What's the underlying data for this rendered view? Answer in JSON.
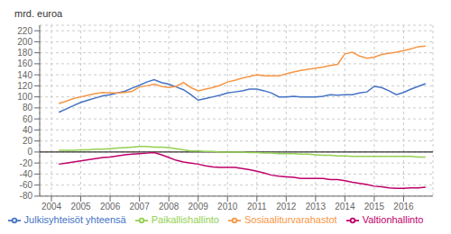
{
  "chart_data": {
    "type": "line",
    "y_label": "mrd. euroa",
    "x": [
      2004.25,
      2004.5,
      2004.75,
      2005.0,
      2005.25,
      2005.5,
      2005.75,
      2006.0,
      2006.25,
      2006.5,
      2006.75,
      2007.0,
      2007.25,
      2007.5,
      2007.75,
      2008.0,
      2008.25,
      2008.5,
      2008.75,
      2009.0,
      2009.25,
      2009.5,
      2009.75,
      2010.0,
      2010.25,
      2010.5,
      2010.75,
      2011.0,
      2011.25,
      2011.5,
      2011.75,
      2012.0,
      2012.25,
      2012.5,
      2012.75,
      2013.0,
      2013.25,
      2013.5,
      2013.75,
      2014.0,
      2014.25,
      2014.5,
      2014.75,
      2015.0,
      2015.25,
      2015.5,
      2015.75,
      2016.0,
      2016.25,
      2016.5,
      2016.75
    ],
    "series": [
      {
        "name": "Julkisyhteisöt yhteensä",
        "color": "#4472c4",
        "values": [
          72,
          78,
          84,
          90,
          94,
          98,
          102,
          104,
          107,
          110,
          116,
          121,
          127,
          131,
          126,
          123,
          118,
          113,
          104,
          94,
          97,
          100,
          103,
          107,
          109,
          111,
          114,
          114,
          111,
          107,
          100,
          100,
          101,
          100,
          100,
          100,
          101,
          104,
          103,
          104,
          104,
          107,
          109,
          119,
          117,
          111,
          104,
          108,
          114,
          119,
          124
        ]
      },
      {
        "name": "Valtionhallinto",
        "color": "#c0006a",
        "values": [
          -22,
          -20,
          -18,
          -16,
          -14,
          -12,
          -10,
          -9,
          -7,
          -5,
          -4,
          -3,
          -2,
          -1,
          -5,
          -10,
          -15,
          -18,
          -20,
          -22,
          -25,
          -27,
          -28,
          -28,
          -28,
          -30,
          -32,
          -35,
          -38,
          -42,
          -44,
          -45,
          -46,
          -48,
          -48,
          -48,
          -48,
          -50,
          -50,
          -52,
          -55,
          -57,
          -59,
          -62,
          -63,
          -65,
          -66,
          -66,
          -65,
          -65,
          -64
        ]
      },
      {
        "name": "Paikallishallinto",
        "color": "#92d050",
        "values": [
          3,
          3,
          3,
          4,
          4,
          5,
          5,
          6,
          7,
          8,
          9,
          10,
          10,
          9,
          9,
          8,
          6,
          4,
          2,
          2,
          1,
          1,
          0,
          0,
          0,
          0,
          -1,
          -1,
          -2,
          -2,
          -3,
          -3,
          -3,
          -4,
          -4,
          -5,
          -6,
          -6,
          -7,
          -7,
          -8,
          -8,
          -8,
          -8,
          -8,
          -8,
          -8,
          -8,
          -8,
          -9,
          -9
        ]
      },
      {
        "name": "Sosiaaliturvarahastot",
        "color": "#f79646",
        "values": [
          88,
          92,
          97,
          100,
          103,
          106,
          108,
          107,
          107,
          108,
          110,
          118,
          120,
          123,
          119,
          117,
          119,
          126,
          117,
          111,
          114,
          117,
          121,
          127,
          130,
          134,
          137,
          140,
          138,
          138,
          138,
          142,
          145,
          148,
          150,
          152,
          154,
          157,
          159,
          178,
          181,
          174,
          170,
          172,
          177,
          179,
          181,
          184,
          187,
          191,
          192
        ]
      }
    ],
    "xlim": [
      2003.6,
      2017.0
    ],
    "xticks": [
      2004,
      2005,
      2006,
      2007,
      2008,
      2009,
      2010,
      2011,
      2012,
      2013,
      2014,
      2015,
      2016
    ],
    "ylim": [
      -80,
      230
    ],
    "yticks": [
      -80,
      -60,
      -40,
      -20,
      0,
      20,
      40,
      60,
      80,
      100,
      120,
      140,
      160,
      180,
      200,
      220
    ],
    "grid": true,
    "legend": "bottom"
  }
}
